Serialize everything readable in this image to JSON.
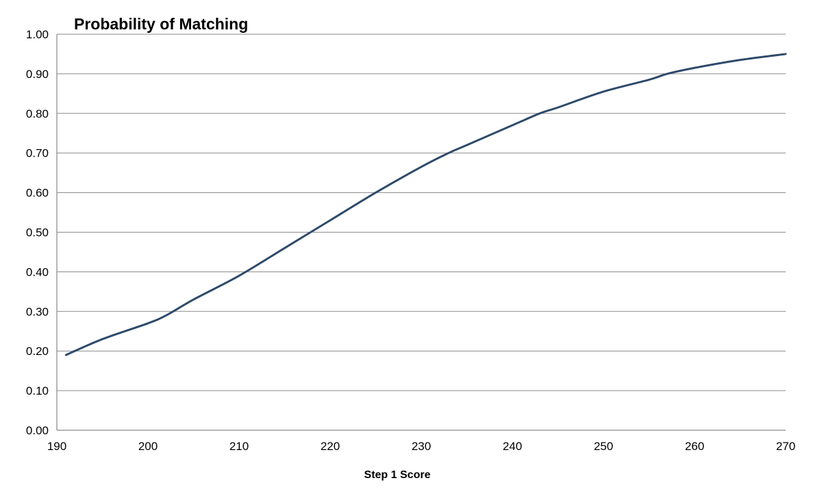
{
  "chart_data": {
    "type": "line",
    "title": "Probability of Matching",
    "xlabel": "Step 1 Score",
    "ylabel": "",
    "xlim": [
      190,
      270
    ],
    "ylim": [
      0,
      1
    ],
    "x_ticks": [
      "190",
      "200",
      "210",
      "220",
      "230",
      "240",
      "250",
      "260",
      "270"
    ],
    "y_ticks": [
      "0.00",
      "0.10",
      "0.20",
      "0.30",
      "0.40",
      "0.50",
      "0.60",
      "0.70",
      "0.80",
      "0.90",
      "1.00"
    ],
    "grid": true,
    "legend": "none",
    "series": [
      {
        "color": "#2e4a6b",
        "x": [
          191,
          195,
          200,
          202,
          205,
          210,
          215,
          220,
          225,
          230,
          233,
          235,
          240,
          243,
          245,
          250,
          255,
          257,
          260,
          265,
          270
        ],
        "y": [
          0.19,
          0.23,
          0.27,
          0.29,
          0.33,
          0.39,
          0.46,
          0.53,
          0.6,
          0.665,
          0.7,
          0.72,
          0.77,
          0.8,
          0.815,
          0.855,
          0.885,
          0.9,
          0.915,
          0.935,
          0.95
        ]
      }
    ]
  }
}
